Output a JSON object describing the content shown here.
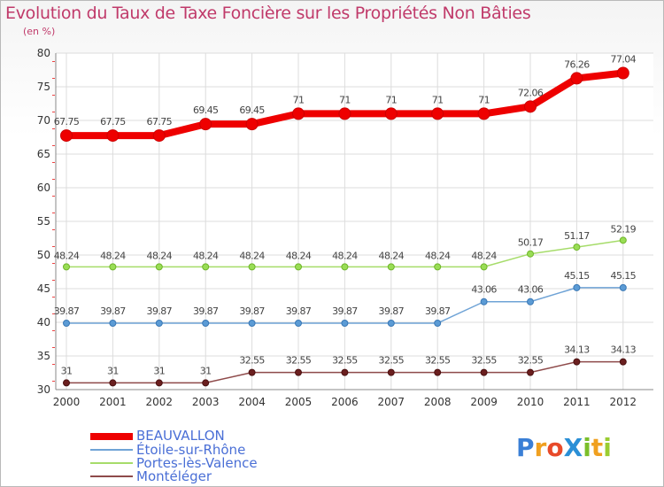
{
  "chart_data": {
    "type": "line",
    "title": "Evolution du Taux de Taxe Foncière sur les Propriétés Non Bâties",
    "ylabel": "(en %)",
    "xlabel": "",
    "x": [
      "2000",
      "2001",
      "2002",
      "2003",
      "2004",
      "2005",
      "2006",
      "2007",
      "2008",
      "2009",
      "2010",
      "2011",
      "2012"
    ],
    "ylim": [
      30,
      80
    ],
    "yticks": [
      30,
      35,
      40,
      45,
      50,
      55,
      60,
      65,
      70,
      75,
      80
    ],
    "grid": true,
    "legend_position": "bottom-left",
    "series": [
      {
        "name": "BEAUVALLON",
        "color": "#ee0000",
        "labels": [
          "67.75",
          "67.75",
          "67.75",
          "69.45",
          "69.45",
          "71",
          "71",
          "71",
          "71",
          "71",
          "72.06",
          "76.26",
          "77.04"
        ],
        "values": [
          67.75,
          67.75,
          67.75,
          69.45,
          69.45,
          71,
          71,
          71,
          71,
          71,
          72.06,
          76.26,
          77.04
        ]
      },
      {
        "name": "Étoile-sur-Rhône",
        "color": "#5b9bd5",
        "labels": [
          "39.87",
          "39.87",
          "39.87",
          "39.87",
          "39.87",
          "39.87",
          "39.87",
          "39.87",
          "39.87",
          "43.06",
          "43.06",
          "45.15",
          "45.15"
        ],
        "values": [
          39.87,
          39.87,
          39.87,
          39.87,
          39.87,
          39.87,
          39.87,
          39.87,
          39.87,
          43.06,
          43.06,
          45.15,
          45.15
        ]
      },
      {
        "name": "Portes-lès-Valence",
        "color": "#99dd55",
        "labels": [
          "48.24",
          "48.24",
          "48.24",
          "48.24",
          "48.24",
          "48.24",
          "48.24",
          "48.24",
          "48.24",
          "48.24",
          "50.17",
          "51.17",
          "52.19"
        ],
        "values": [
          48.24,
          48.24,
          48.24,
          48.24,
          48.24,
          48.24,
          48.24,
          48.24,
          48.24,
          48.24,
          50.17,
          51.17,
          52.19
        ]
      },
      {
        "name": "Montéléger",
        "color": "#7a2e2e",
        "labels": [
          "31",
          "31",
          "31",
          "31",
          "32.55",
          "32.55",
          "32.55",
          "32.55",
          "32.55",
          "32.55",
          "32.55",
          "34.13",
          "34.13"
        ],
        "values": [
          31,
          31,
          31,
          31,
          32.55,
          32.55,
          32.55,
          32.55,
          32.55,
          32.55,
          32.55,
          34.13,
          34.13
        ]
      }
    ]
  },
  "logo": {
    "text": "ProXiti",
    "letters": [
      "P",
      "r",
      "o",
      "X",
      "i",
      "t",
      "i"
    ],
    "colors": [
      "#3a7fd6",
      "#f0a020",
      "#e84a2a",
      "#2a8fd6",
      "#7bbf2a",
      "#f0a020",
      "#9acd32"
    ]
  }
}
